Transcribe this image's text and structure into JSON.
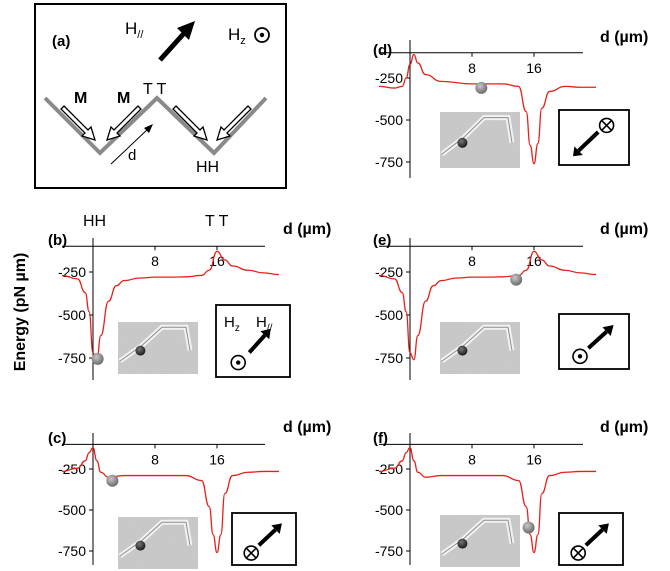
{
  "figure": {
    "y_axis_label": "Energy (pN µm)",
    "x_axis_label": "d (µm)",
    "y_ticks": [
      "-250",
      "-500",
      "-750"
    ],
    "x_ticks": [
      "8",
      "16"
    ]
  },
  "schematic": {
    "panel_label": "(a)",
    "field_inplane": "H",
    "field_inplane_sub": "//",
    "field_z": "H",
    "field_z_sub": "z",
    "magnetization_label_1": "M",
    "magnetization_label_2": "M",
    "coordinate_label": "d",
    "wall_tt": "T T",
    "wall_hh": "HH"
  },
  "panels": [
    {
      "id": "b",
      "label": "(b)",
      "top_labels": [
        "HH",
        "T T"
      ],
      "field_labels": [
        "H",
        "z",
        "H",
        "//"
      ],
      "field_state": "out-of-plane",
      "bead_d": 0.6
    },
    {
      "id": "c",
      "label": "(c)",
      "field_state": "into-plane",
      "bead_d": 2.5
    },
    {
      "id": "d",
      "label": "(d)",
      "field_state": "into-plane-reversed",
      "bead_d": 9.2
    },
    {
      "id": "e",
      "label": "(e)",
      "field_state": "out-of-plane",
      "bead_d": 13.7
    },
    {
      "id": "f",
      "label": "(f)",
      "field_state": "into-plane",
      "bead_d": 15.3
    }
  ],
  "chart_data": [
    {
      "type": "line",
      "panel": "b",
      "xlabel": "d (µm)",
      "ylabel": "Energy (pN µm)",
      "xlim": [
        -4,
        24
      ],
      "ylim": [
        -800,
        -100
      ],
      "x": [
        -4,
        -2,
        -1,
        -0.5,
        0,
        0.5,
        1,
        2,
        3,
        4,
        6,
        8,
        10,
        12,
        14,
        15,
        16,
        17,
        18,
        20,
        22,
        24
      ],
      "y": [
        -270,
        -290,
        -370,
        -480,
        -720,
        -760,
        -620,
        -420,
        -330,
        -300,
        -285,
        -280,
        -280,
        -278,
        -270,
        -240,
        -130,
        -180,
        -215,
        -240,
        -255,
        -265
      ]
    },
    {
      "type": "line",
      "panel": "c",
      "xlabel": "d (µm)",
      "ylabel": "Energy (pN µm)",
      "xlim": [
        -4,
        24
      ],
      "ylim": [
        -800,
        -100
      ],
      "x": [
        -4,
        -2,
        -1,
        -0.5,
        0,
        0.5,
        1,
        2,
        4,
        8,
        12,
        14,
        15,
        15.5,
        16,
        16.5,
        17,
        18,
        20,
        22,
        24
      ],
      "y": [
        -265,
        -245,
        -200,
        -150,
        -120,
        -200,
        -270,
        -300,
        -290,
        -290,
        -290,
        -320,
        -480,
        -650,
        -760,
        -650,
        -400,
        -290,
        -270,
        -265,
        -265
      ]
    },
    {
      "type": "line",
      "panel": "d",
      "xlabel": "d (µm)",
      "ylabel": "Energy (pN µm)",
      "xlim": [
        -4,
        24
      ],
      "ylim": [
        -800,
        -100
      ],
      "x": [
        -4,
        -2,
        -1,
        -0.5,
        0,
        0.5,
        1,
        2,
        4,
        8,
        12,
        14,
        15,
        15.5,
        16,
        16.5,
        17,
        18,
        20,
        22,
        24
      ],
      "y": [
        -300,
        -310,
        -300,
        -250,
        -170,
        -110,
        -160,
        -230,
        -270,
        -285,
        -285,
        -300,
        -450,
        -650,
        -760,
        -640,
        -430,
        -330,
        -300,
        -305,
        -305
      ]
    },
    {
      "type": "line",
      "panel": "e",
      "xlabel": "d (µm)",
      "ylabel": "Energy (pN µm)",
      "xlim": [
        -4,
        24
      ],
      "ylim": [
        -800,
        -100
      ],
      "x": [
        -4,
        -2,
        -1,
        -0.5,
        0,
        0.5,
        1,
        2,
        3,
        4,
        6,
        8,
        10,
        12,
        14,
        15,
        16,
        17,
        18,
        20,
        22,
        24
      ],
      "y": [
        -270,
        -290,
        -370,
        -480,
        -720,
        -760,
        -620,
        -420,
        -330,
        -300,
        -285,
        -280,
        -280,
        -278,
        -270,
        -240,
        -130,
        -180,
        -215,
        -240,
        -255,
        -265
      ]
    },
    {
      "type": "line",
      "panel": "f",
      "xlabel": "d (µm)",
      "ylabel": "Energy (pN µm)",
      "xlim": [
        -4,
        24
      ],
      "ylim": [
        -800,
        -100
      ],
      "x": [
        -4,
        -2,
        -1,
        -0.5,
        0,
        0.5,
        1,
        2,
        4,
        8,
        12,
        14,
        15,
        15.5,
        16,
        16.5,
        17,
        18,
        20,
        22,
        24
      ],
      "y": [
        -265,
        -245,
        -200,
        -150,
        -120,
        -200,
        -270,
        -300,
        -290,
        -290,
        -290,
        -320,
        -480,
        -650,
        -760,
        -650,
        -400,
        -290,
        -270,
        -265,
        -265
      ]
    }
  ]
}
